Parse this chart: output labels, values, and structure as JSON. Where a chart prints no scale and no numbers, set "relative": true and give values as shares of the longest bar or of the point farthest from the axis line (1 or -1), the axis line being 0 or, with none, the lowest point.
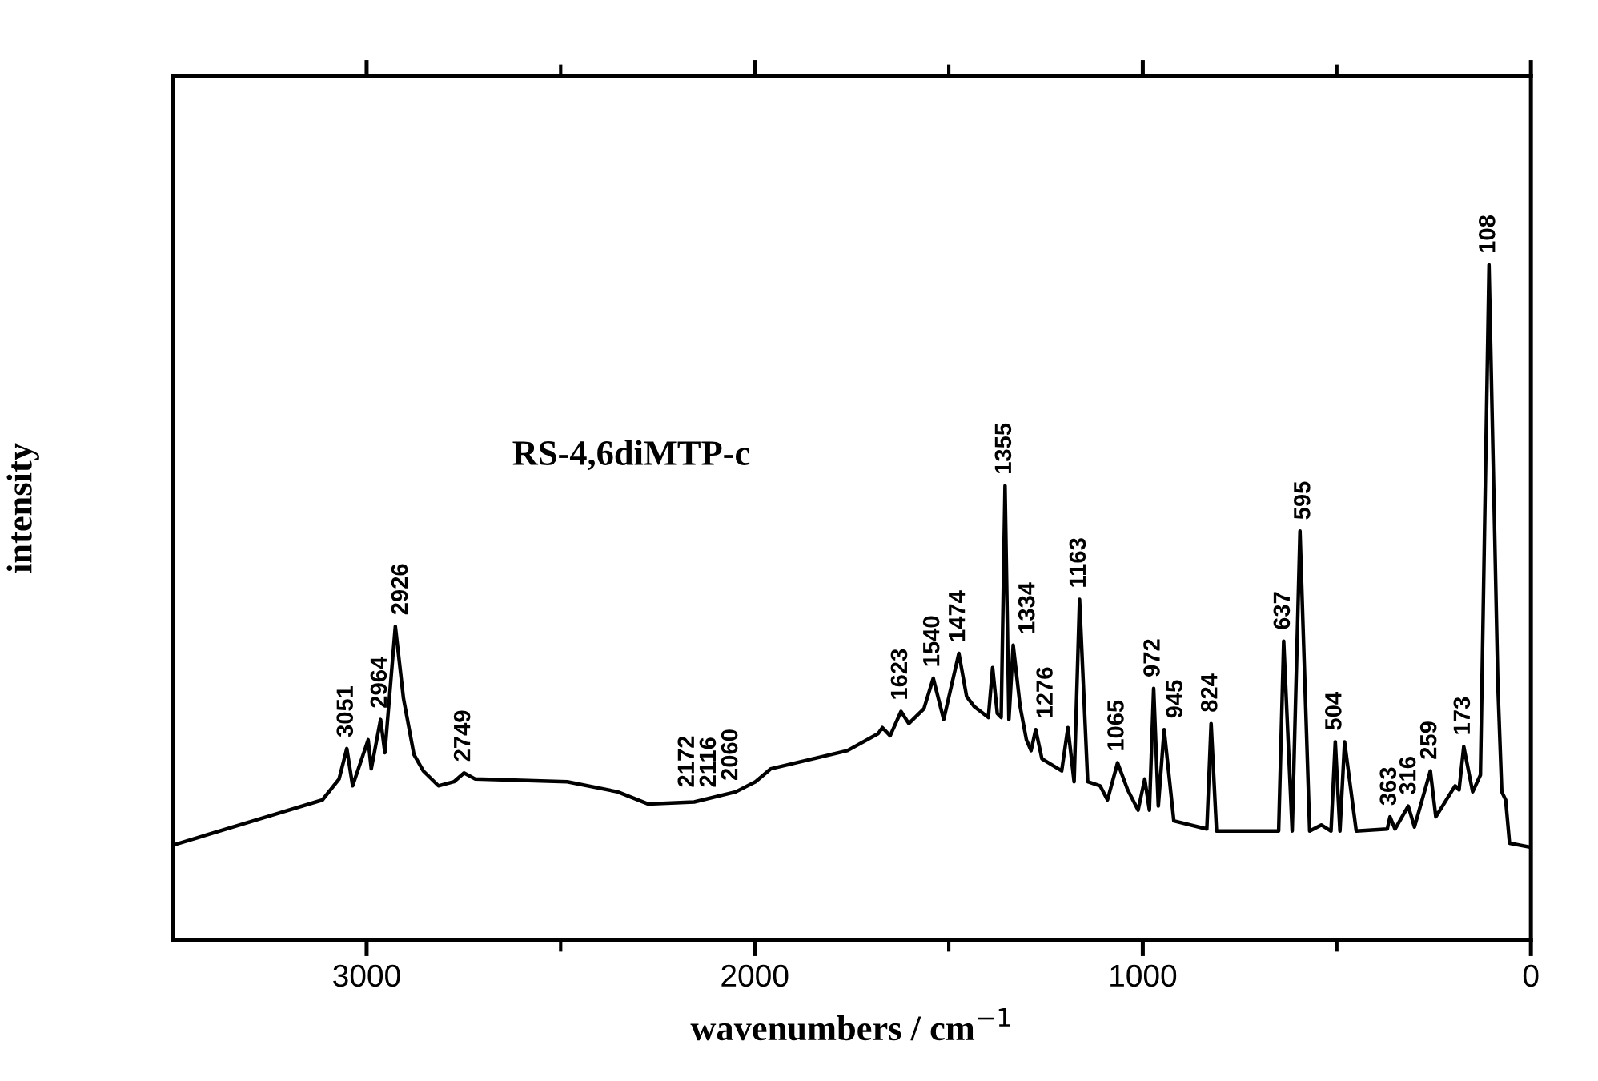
{
  "chart_data": {
    "type": "line",
    "relative": true,
    "xlabel": "wavenumbers / cm$^{−1}$",
    "ylabel": "intensity",
    "xlim": [
      3500,
      0
    ],
    "xticks": [
      3000,
      {
        "value": 2500,
        "label": null
      },
      2000,
      {
        "value": 1500,
        "label": null
      },
      1000,
      {
        "value": 500,
        "label": null
      },
      0
    ],
    "tick_labels": "x",
    "grid": false,
    "legend": false,
    "marker": "none",
    "line_style": "solid",
    "series": [
      {
        "color": "#000000",
        "x": [
          3500,
          3114,
          3071,
          3051,
          3036,
          2996,
          2988,
          2964,
          2953,
          2926,
          2905,
          2878,
          2854,
          2815,
          2775,
          2749,
          2720,
          2483,
          2353,
          2274,
          2156,
          2049,
          1998,
          1959,
          1761,
          1682,
          1671,
          1651,
          1623,
          1603,
          1564,
          1540,
          1513,
          1474,
          1454,
          1434,
          1398,
          1387,
          1375,
          1365,
          1355,
          1345,
          1334,
          1316,
          1300,
          1288,
          1276,
          1260,
          1209,
          1193,
          1177,
          1163,
          1142,
          1110,
          1091,
          1065,
          1039,
          1012,
          995,
          983,
          972,
          960,
          945,
          920,
          835,
          824,
          810,
          650,
          637,
          615,
          595,
          570,
          540,
          515,
          504,
          492,
          480,
          450,
          370,
          363,
          350,
          316,
          300,
          270,
          259,
          245,
          205,
          195,
          185,
          173,
          150,
          130,
          108,
          85,
          75,
          65,
          55,
          0
        ],
        "values": [
          0.141,
          0.208,
          0.239,
          0.284,
          0.229,
          0.297,
          0.254,
          0.327,
          0.278,
          0.465,
          0.358,
          0.275,
          0.251,
          0.229,
          0.235,
          0.248,
          0.239,
          0.235,
          0.22,
          0.202,
          0.205,
          0.22,
          0.235,
          0.254,
          0.281,
          0.306,
          0.315,
          0.303,
          0.339,
          0.321,
          0.343,
          0.388,
          0.327,
          0.425,
          0.361,
          0.346,
          0.33,
          0.404,
          0.336,
          0.33,
          0.673,
          0.327,
          0.437,
          0.346,
          0.297,
          0.281,
          0.312,
          0.269,
          0.251,
          0.315,
          0.235,
          0.505,
          0.235,
          0.229,
          0.208,
          0.263,
          0.223,
          0.193,
          0.239,
          0.193,
          0.373,
          0.199,
          0.312,
          0.177,
          0.165,
          0.321,
          0.162,
          0.162,
          0.443,
          0.162,
          0.606,
          0.162,
          0.171,
          0.162,
          0.294,
          0.162,
          0.294,
          0.162,
          0.165,
          0.183,
          0.165,
          0.199,
          0.168,
          0.229,
          0.251,
          0.183,
          0.22,
          0.229,
          0.223,
          0.287,
          0.22,
          0.245,
          1,
          0.376,
          0.22,
          0.208,
          0.144,
          0.138
        ]
      }
    ],
    "annotations": [
      "RS-4,6diMTP-c",
      {
        "text": "3051",
        "x": 3051,
        "y": 0.284
      },
      {
        "text": "2964",
        "x": 2964,
        "y": 0.327
      },
      {
        "text": "2926",
        "x": 2926,
        "y": 0.465
      },
      {
        "text": "2749",
        "x": 2749,
        "y": 0.248
      },
      {
        "text": "2172",
        "x": 2172,
        "y": 0.21
      },
      {
        "text": "2116",
        "x": 2116,
        "y": 0.21
      },
      {
        "text": "2060",
        "x": 2060,
        "y": 0.22
      },
      {
        "text": "1623",
        "x": 1623,
        "y": 0.339
      },
      {
        "text": "1540",
        "x": 1540,
        "y": 0.388
      },
      {
        "text": "1474",
        "x": 1474,
        "y": 0.425
      },
      {
        "text": "1355",
        "x": 1355,
        "y": 0.673
      },
      {
        "text": "1334",
        "x": 1334,
        "y": 0.437
      },
      {
        "text": "1276",
        "x": 1276,
        "y": 0.312
      },
      {
        "text": "1163",
        "x": 1163,
        "y": 0.505
      },
      {
        "text": "1065",
        "x": 1065,
        "y": 0.263
      },
      {
        "text": "972",
        "x": 972,
        "y": 0.373
      },
      {
        "text": "945",
        "x": 945,
        "y": 0.312
      },
      {
        "text": "824",
        "x": 824,
        "y": 0.321
      },
      {
        "text": "637",
        "x": 637,
        "y": 0.443
      },
      {
        "text": "595",
        "x": 595,
        "y": 0.606
      },
      {
        "text": "504",
        "x": 504,
        "y": 0.294
      },
      {
        "text": "363",
        "x": 363,
        "y": 0.183
      },
      {
        "text": "316",
        "x": 316,
        "y": 0.199
      },
      {
        "text": "259",
        "x": 259,
        "y": 0.251
      },
      {
        "text": "173",
        "x": 173,
        "y": 0.287
      },
      {
        "text": "108",
        "x": 108,
        "y": 1
      }
    ]
  }
}
